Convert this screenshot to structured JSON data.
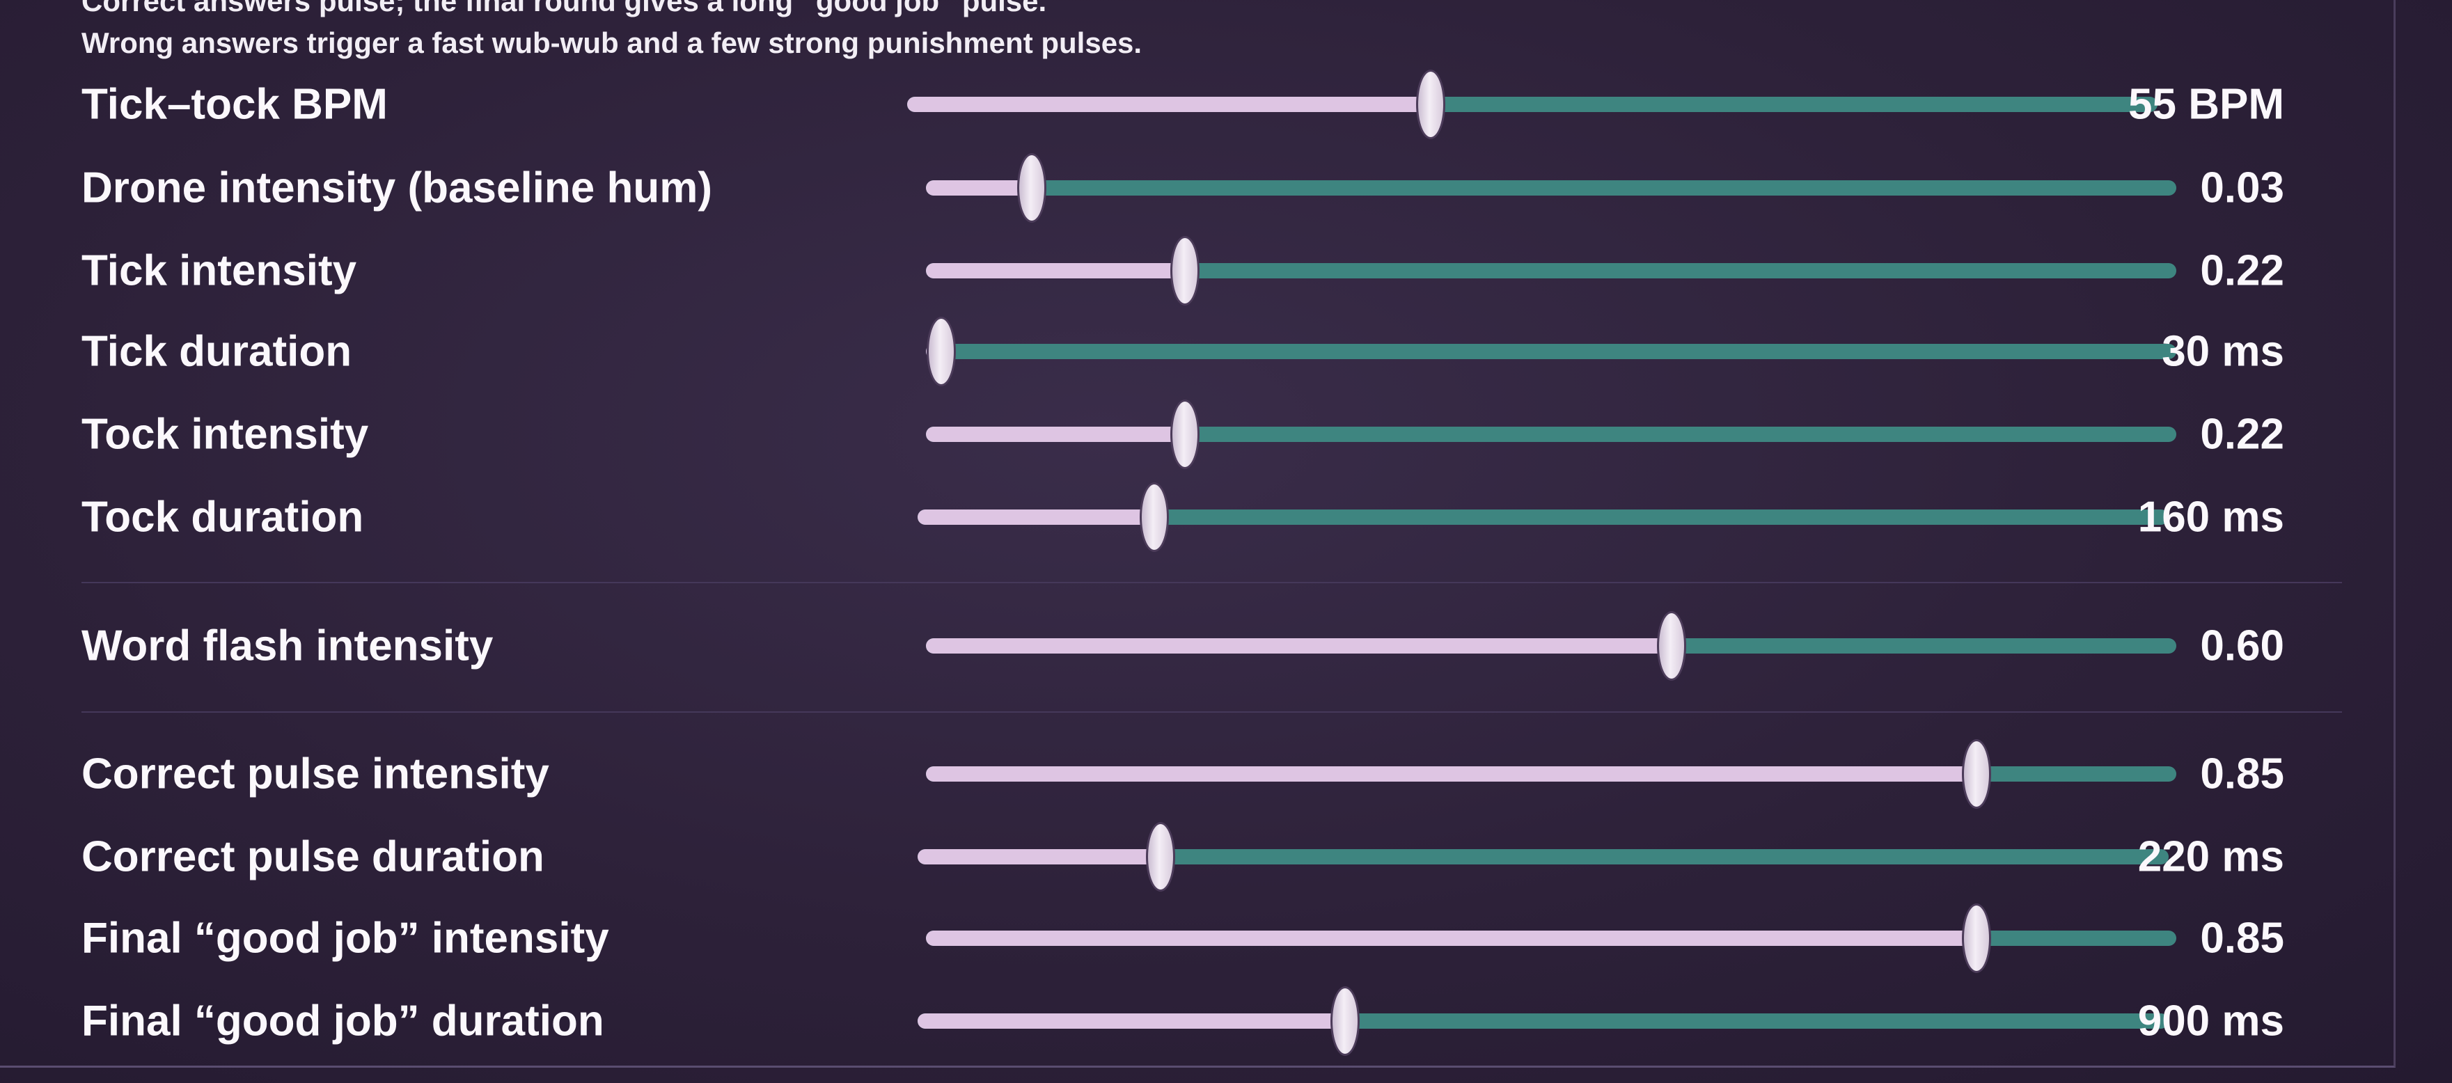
{
  "header": {
    "line1": "Correct answers pulse; the final round gives a long “good job” pulse.",
    "line2": "Wrong answers trigger a fast wub-wub and a few strong punishment pulses."
  },
  "groups": [
    {
      "rows": [
        {
          "label": "Tick–tock BPM",
          "value": "55 BPM"
        },
        {
          "label": "Drone intensity (baseline hum)",
          "value": "0.03"
        },
        {
          "label": "Tick intensity",
          "value": "0.22"
        },
        {
          "label": "Tick duration",
          "value": "30 ms"
        },
        {
          "label": "Tock intensity",
          "value": "0.22"
        },
        {
          "label": "Tock duration",
          "value": "160 ms"
        }
      ]
    },
    {
      "rows": [
        {
          "label": "Word flash intensity",
          "value": "0.60"
        }
      ]
    },
    {
      "rows": [
        {
          "label": "Correct pulse intensity",
          "value": "0.85"
        },
        {
          "label": "Correct pulse duration",
          "value": "220 ms"
        },
        {
          "label": "Final “good job” intensity",
          "value": "0.85"
        },
        {
          "label": "Final “good job” duration",
          "value": "900 ms"
        }
      ]
    }
  ]
}
